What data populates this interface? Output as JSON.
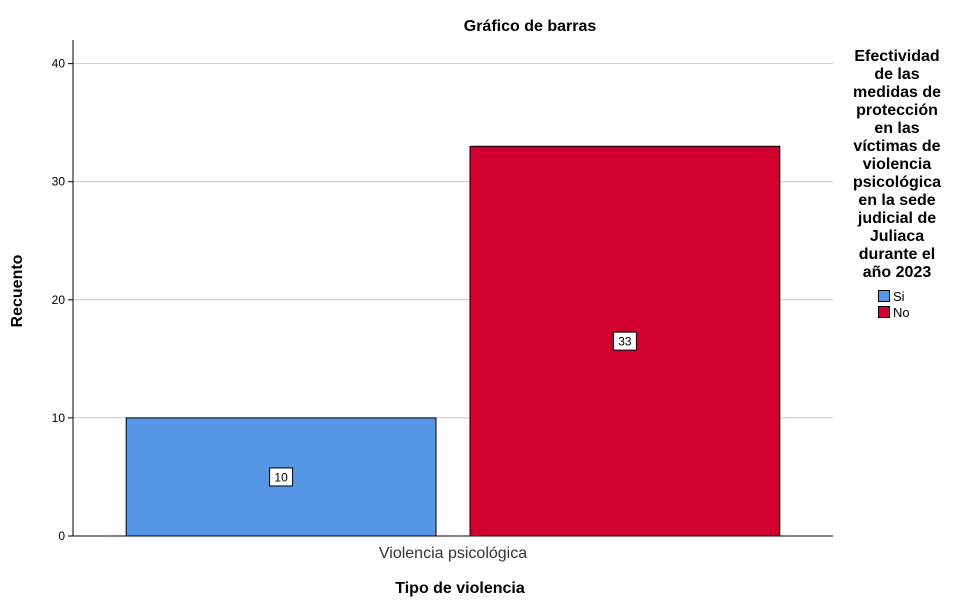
{
  "chart_data": {
    "type": "bar",
    "title": "Gráfico de barras",
    "xlabel": "Tipo de violencia",
    "ylabel": "Recuento",
    "categories": [
      "Violencia psicológica"
    ],
    "series": [
      {
        "name": "Si",
        "values": [
          10
        ],
        "color": "#5596e6"
      },
      {
        "name": "No",
        "values": [
          33
        ],
        "color": "#d1002e"
      }
    ],
    "ylim": [
      0,
      42
    ],
    "yticks": [
      0,
      10,
      20,
      30,
      40
    ],
    "grid": true,
    "legend": {
      "title": "Efectividad de las medidas de protección en las víctimas de violencia psicológica en la sede judicial de Juliaca durante el año 2023",
      "title_lines": [
        "Efectividad",
        "de las",
        "medidas de",
        "protección",
        "en las",
        "víctimas de",
        "violencia",
        "psicológica",
        "en la sede",
        "judicial de",
        "Juliaca",
        "durante el",
        "año 2023"
      ],
      "position": "right"
    }
  }
}
